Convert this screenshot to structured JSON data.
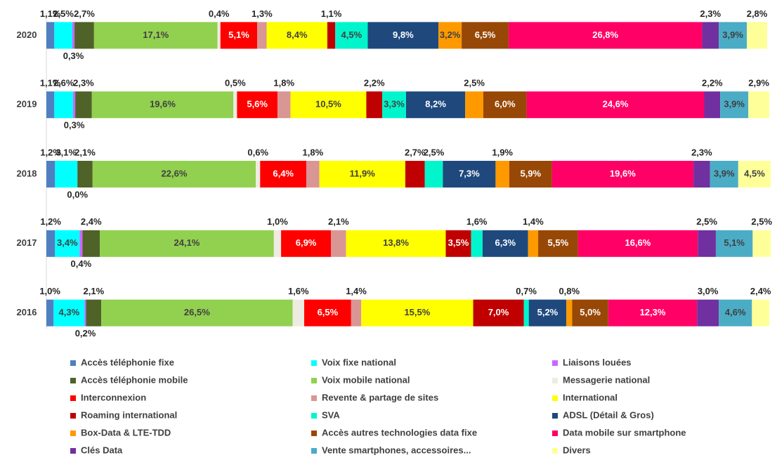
{
  "chart_data": {
    "type": "stacked_bar_horizontal",
    "categories": [
      "2020",
      "2019",
      "2018",
      "2017",
      "2016"
    ],
    "xlim": [
      0,
      100
    ],
    "series": [
      {
        "name": "Accès téléphonie fixe",
        "color": "#4f7fc0",
        "values": [
          1.1,
          1.1,
          1.2,
          1.2,
          1.0
        ],
        "value_labels": [
          "1,1%",
          "1,1%",
          "1,2%",
          "1,2%",
          "1,0%"
        ]
      },
      {
        "name": "Voix fixe national",
        "color": "#00ffff",
        "values": [
          2.5,
          2.6,
          3.1,
          3.4,
          4.3
        ],
        "value_labels": [
          "2,5%",
          "2,6%",
          "3,1%",
          "3,4%",
          "4,3%"
        ]
      },
      {
        "name": "Liaisons louées",
        "color": "#cc66ff",
        "values": [
          0.3,
          0.3,
          0.0,
          0.4,
          0.2
        ],
        "value_labels": [
          "0,3%",
          "0,3%",
          "0,0%",
          "0,4%",
          "0,2%"
        ]
      },
      {
        "name": "Accès téléphonie mobile",
        "color": "#4f6228",
        "values": [
          2.7,
          2.3,
          2.1,
          2.4,
          2.1
        ],
        "value_labels": [
          "2,7%",
          "2,3%",
          "2,1%",
          "2,4%",
          "2,1%"
        ]
      },
      {
        "name": "Voix mobile national",
        "color": "#92d050",
        "values": [
          17.1,
          19.6,
          22.6,
          24.1,
          26.5
        ],
        "value_labels": [
          "17,1%",
          "19,6%",
          "22,6%",
          "24,1%",
          "26,5%"
        ]
      },
      {
        "name": "Messagerie national",
        "color": "#eeece1",
        "values": [
          0.4,
          0.5,
          0.6,
          1.0,
          1.6
        ],
        "value_labels": [
          "0,4%",
          "0,5%",
          "0,6%",
          "1,0%",
          "1,6%"
        ]
      },
      {
        "name": "Interconnexion",
        "color": "#ff0000",
        "values": [
          5.1,
          5.6,
          6.4,
          6.9,
          6.5
        ],
        "value_labels": [
          "5,1%",
          "5,6%",
          "6,4%",
          "6,9%",
          "6,5%"
        ]
      },
      {
        "name": "Revente & partage de sites",
        "color": "#d99694",
        "values": [
          1.3,
          1.8,
          1.8,
          2.1,
          1.4
        ],
        "value_labels": [
          "1,3%",
          "1,8%",
          "1,8%",
          "2,1%",
          "1,4%"
        ]
      },
      {
        "name": "International",
        "color": "#ffff00",
        "values": [
          8.4,
          10.5,
          11.9,
          13.8,
          15.5
        ],
        "value_labels": [
          "8,4%",
          "10,5%",
          "11,9%",
          "13,8%",
          "15,5%"
        ]
      },
      {
        "name": "Roaming international",
        "color": "#c00000",
        "values": [
          1.1,
          2.2,
          2.7,
          3.5,
          7.0
        ],
        "value_labels": [
          "1,1%",
          "2,2%",
          "2,7%",
          "3,5%",
          "7,0%"
        ]
      },
      {
        "name": "SVA",
        "color": "#00f5cc",
        "values": [
          4.5,
          3.3,
          2.5,
          1.6,
          0.7
        ],
        "value_labels": [
          "4,5%",
          "3,3%",
          "2,5%",
          "1,6%",
          "0,7%"
        ]
      },
      {
        "name": "ADSL (Détail & Gros)",
        "color": "#1f497d",
        "values": [
          9.8,
          8.2,
          7.3,
          6.3,
          5.2
        ],
        "value_labels": [
          "9,8%",
          "8,2%",
          "7,3%",
          "6,3%",
          "5,2%"
        ]
      },
      {
        "name": "Box-Data & LTE-TDD",
        "color": "#ff9900",
        "values": [
          3.2,
          2.5,
          1.9,
          1.4,
          0.8
        ],
        "value_labels": [
          "3,2%",
          "2,5%",
          "1,9%",
          "1,4%",
          "0,8%"
        ]
      },
      {
        "name": "Accès autres technologies data fixe",
        "color": "#974806",
        "values": [
          6.5,
          6.0,
          5.9,
          5.5,
          5.0
        ],
        "value_labels": [
          "6,5%",
          "6,0%",
          "5,9%",
          "5,5%",
          "5,0%"
        ]
      },
      {
        "name": "Data mobile sur smartphone",
        "color": "#ff0066",
        "values": [
          26.8,
          24.6,
          19.6,
          16.6,
          12.3
        ],
        "value_labels": [
          "26,8%",
          "24,6%",
          "19,6%",
          "16,6%",
          "12,3%"
        ]
      },
      {
        "name": "Clés Data",
        "color": "#7030a0",
        "values": [
          2.3,
          2.2,
          2.3,
          2.5,
          3.0
        ],
        "value_labels": [
          "2,3%",
          "2,2%",
          "2,3%",
          "2,5%",
          "3,0%"
        ]
      },
      {
        "name": "Vente smartphones, accessoires...",
        "color": "#4bacc6",
        "values": [
          3.9,
          3.9,
          3.9,
          5.1,
          4.6
        ],
        "value_labels": [
          "3,9%",
          "3,9%",
          "3,9%",
          "5,1%",
          "4,6%"
        ]
      },
      {
        "name": "Divers",
        "color": "#ffff99",
        "values": [
          2.8,
          2.9,
          4.5,
          2.5,
          2.4
        ],
        "value_labels": [
          "2,8%",
          "2,9%",
          "4,5%",
          "2,5%",
          "2,4%"
        ]
      }
    ]
  }
}
